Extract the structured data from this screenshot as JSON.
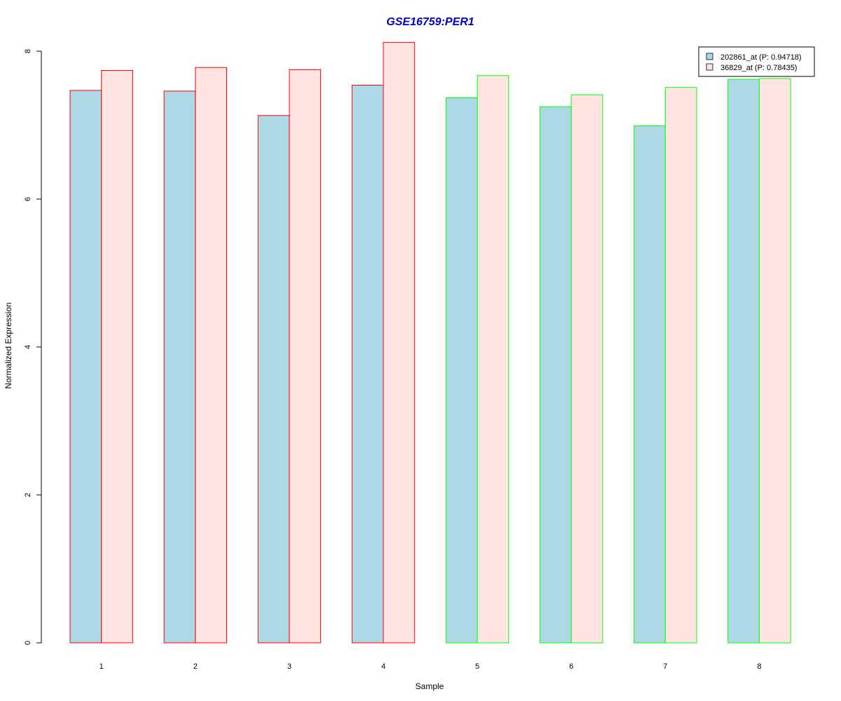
{
  "chart_data": {
    "type": "bar",
    "title": "GSE16759:PER1",
    "title_color": "#0000CD",
    "xlabel": "Sample",
    "ylabel": "Normalized Expression",
    "categories": [
      "1",
      "2",
      "3",
      "4",
      "5",
      "6",
      "7",
      "8"
    ],
    "y_ticks": [
      "0",
      "2",
      "4",
      "6",
      "8"
    ],
    "ylim": [
      0,
      8
    ],
    "grid": false,
    "legend_position": "top-right",
    "series": [
      {
        "name": "202861_at (P: 0.94718)",
        "fill": "#ADD8E6",
        "values": [
          7.47,
          7.46,
          7.13,
          7.54,
          7.37,
          7.25,
          6.99,
          7.62
        ]
      },
      {
        "name": "36829_at (P: 0.78435)",
        "fill": "#FFE4E1",
        "values": [
          7.74,
          7.78,
          7.75,
          8.12,
          7.67,
          7.41,
          7.51,
          7.63
        ]
      }
    ],
    "group_border_colors": [
      "#FF0000",
      "#FF0000",
      "#FF0000",
      "#FF0000",
      "#00FF00",
      "#00FF00",
      "#00FF00",
      "#00FF00"
    ]
  }
}
